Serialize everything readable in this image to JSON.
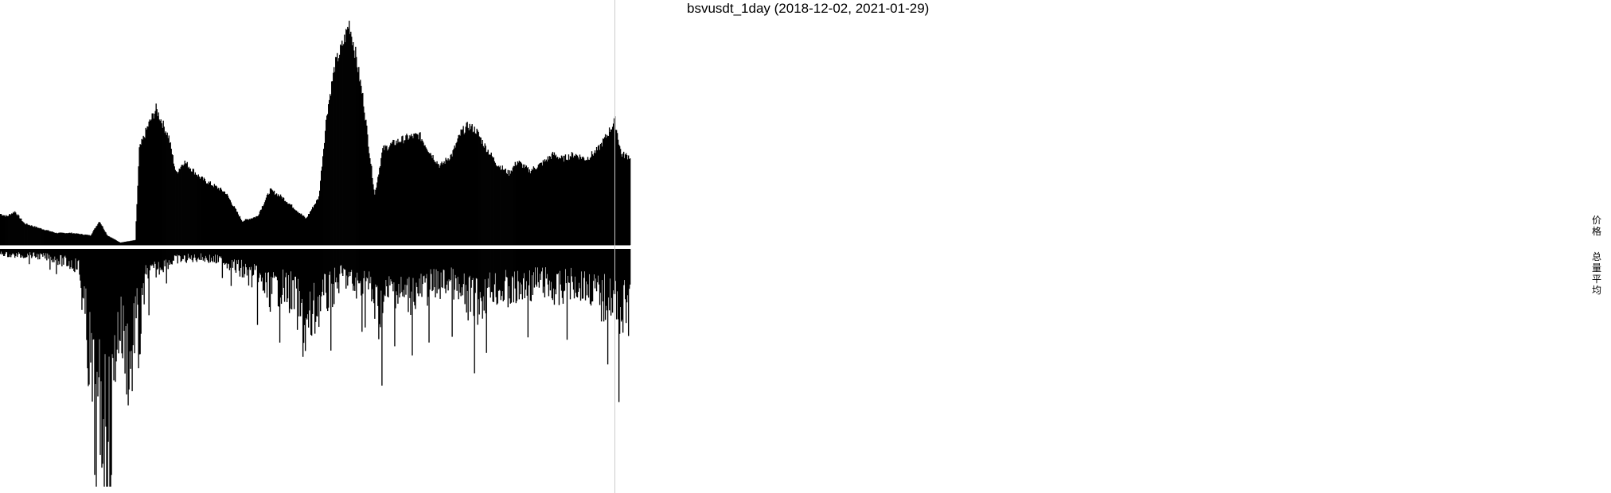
{
  "title": "bsvusdt_1day (2018-12-02, 2021-01-29)",
  "side_labels": {
    "price": "价格",
    "volume": "总量平均"
  },
  "colors": {
    "bars": "#000000",
    "background": "#ffffff",
    "cursor_line": "#cccccc"
  },
  "chart_data": [
    {
      "type": "bar",
      "panel": "price",
      "title": "bsvusdt_1day (2018-12-02, 2021-01-29)",
      "x_start": "2018-12-02",
      "x_end": "2021-01-29",
      "ylabel": "价格",
      "points": [
        [
          "2018-12-02",
          0.13
        ],
        [
          "2018-12-10",
          0.12
        ],
        [
          "2018-12-20",
          0.14
        ],
        [
          "2019-01-01",
          0.09
        ],
        [
          "2019-01-20",
          0.07
        ],
        [
          "2019-02-10",
          0.05
        ],
        [
          "2019-03-01",
          0.05
        ],
        [
          "2019-03-25",
          0.04
        ],
        [
          "2019-04-05",
          0.1
        ],
        [
          "2019-04-15",
          0.04
        ],
        [
          "2019-05-01",
          0.01
        ],
        [
          "2019-05-20",
          0.02
        ],
        [
          "2019-05-25",
          0.4
        ],
        [
          "2019-06-05",
          0.5
        ],
        [
          "2019-06-15",
          0.57
        ],
        [
          "2019-07-01",
          0.45
        ],
        [
          "2019-07-10",
          0.3
        ],
        [
          "2019-07-20",
          0.35
        ],
        [
          "2019-08-10",
          0.28
        ],
        [
          "2019-09-10",
          0.22
        ],
        [
          "2019-10-01",
          0.1
        ],
        [
          "2019-10-20",
          0.12
        ],
        [
          "2019-11-05",
          0.23
        ],
        [
          "2019-11-20",
          0.2
        ],
        [
          "2019-12-10",
          0.14
        ],
        [
          "2019-12-20",
          0.11
        ],
        [
          "2020-01-05",
          0.2
        ],
        [
          "2020-01-15",
          0.55
        ],
        [
          "2020-01-25",
          0.75
        ],
        [
          "2020-02-05",
          0.85
        ],
        [
          "2020-02-12",
          0.93
        ],
        [
          "2020-02-20",
          0.8
        ],
        [
          "2020-03-01",
          0.6
        ],
        [
          "2020-03-08",
          0.4
        ],
        [
          "2020-03-15",
          0.21
        ],
        [
          "2020-03-25",
          0.4
        ],
        [
          "2020-04-10",
          0.43
        ],
        [
          "2020-04-25",
          0.45
        ],
        [
          "2020-05-10",
          0.46
        ],
        [
          "2020-05-25",
          0.38
        ],
        [
          "2020-06-05",
          0.33
        ],
        [
          "2020-06-20",
          0.38
        ],
        [
          "2020-07-01",
          0.47
        ],
        [
          "2020-07-10",
          0.5
        ],
        [
          "2020-07-20",
          0.48
        ],
        [
          "2020-07-30",
          0.42
        ],
        [
          "2020-08-15",
          0.34
        ],
        [
          "2020-08-30",
          0.3
        ],
        [
          "2020-09-10",
          0.35
        ],
        [
          "2020-09-25",
          0.31
        ],
        [
          "2020-10-10",
          0.34
        ],
        [
          "2020-10-25",
          0.38
        ],
        [
          "2020-11-05",
          0.36
        ],
        [
          "2020-11-20",
          0.38
        ],
        [
          "2020-12-05",
          0.36
        ],
        [
          "2020-12-20",
          0.4
        ],
        [
          "2020-12-31",
          0.46
        ],
        [
          "2021-01-10",
          0.52
        ],
        [
          "2021-01-18",
          0.38
        ],
        [
          "2021-01-29",
          0.37
        ]
      ]
    },
    {
      "type": "bar",
      "panel": "volume",
      "ylabel": "总量平均",
      "orientation": "downward",
      "points": [
        [
          "2018-12-02",
          0.02
        ],
        [
          "2018-12-15",
          0.03
        ],
        [
          "2019-01-10",
          0.03
        ],
        [
          "2019-02-01",
          0.04
        ],
        [
          "2019-02-20",
          0.06
        ],
        [
          "2019-03-10",
          0.08
        ],
        [
          "2019-03-25",
          0.55
        ],
        [
          "2019-04-01",
          0.9
        ],
        [
          "2019-04-10",
          0.75
        ],
        [
          "2019-04-18",
          1.0
        ],
        [
          "2019-04-25",
          0.45
        ],
        [
          "2019-05-01",
          0.35
        ],
        [
          "2019-05-10",
          0.5
        ],
        [
          "2019-05-15",
          0.55
        ],
        [
          "2019-05-20",
          0.3
        ],
        [
          "2019-05-25",
          0.45
        ],
        [
          "2019-06-01",
          0.15
        ],
        [
          "2019-06-20",
          0.08
        ],
        [
          "2019-07-10",
          0.05
        ],
        [
          "2019-08-10",
          0.04
        ],
        [
          "2019-09-10",
          0.06
        ],
        [
          "2019-10-01",
          0.1
        ],
        [
          "2019-10-20",
          0.15
        ],
        [
          "2019-11-05",
          0.2
        ],
        [
          "2019-11-20",
          0.18
        ],
        [
          "2019-12-05",
          0.22
        ],
        [
          "2019-12-20",
          0.4
        ],
        [
          "2020-01-05",
          0.25
        ],
        [
          "2020-01-20",
          0.2
        ],
        [
          "2020-02-05",
          0.12
        ],
        [
          "2020-02-20",
          0.18
        ],
        [
          "2020-03-05",
          0.15
        ],
        [
          "2020-03-20",
          0.3
        ],
        [
          "2020-04-05",
          0.18
        ],
        [
          "2020-04-20",
          0.22
        ],
        [
          "2020-05-10",
          0.2
        ],
        [
          "2020-05-25",
          0.18
        ],
        [
          "2020-06-15",
          0.15
        ],
        [
          "2020-07-01",
          0.22
        ],
        [
          "2020-07-20",
          0.25
        ],
        [
          "2020-08-10",
          0.18
        ],
        [
          "2020-08-30",
          0.2
        ],
        [
          "2020-09-20",
          0.18
        ],
        [
          "2020-10-10",
          0.15
        ],
        [
          "2020-10-30",
          0.2
        ],
        [
          "2020-11-20",
          0.16
        ],
        [
          "2020-12-10",
          0.18
        ],
        [
          "2020-12-25",
          0.24
        ],
        [
          "2021-01-05",
          0.22
        ],
        [
          "2021-01-15",
          0.3
        ],
        [
          "2021-01-29",
          0.28
        ]
      ]
    }
  ]
}
